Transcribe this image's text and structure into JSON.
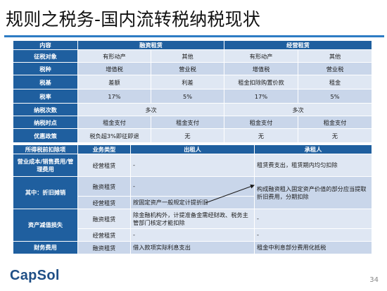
{
  "title": "规则之税务-国内流转税纳税现状",
  "top_table": {
    "header": [
      "内容",
      "融资租赁",
      "经营租赁"
    ],
    "rows": [
      {
        "label": "征税对象",
        "cells": [
          "有形动产",
          "其他",
          "有形动产",
          "其他"
        ]
      },
      {
        "label": "税种",
        "cells": [
          "增值税",
          "营业税",
          "增值税",
          "营业税"
        ]
      },
      {
        "label": "税基",
        "cells": [
          "差额",
          "利差",
          "租金扣除购置价款",
          "租金"
        ]
      },
      {
        "label": "税率",
        "cells": [
          "17%",
          "5%",
          "17%",
          "5%"
        ]
      },
      {
        "label": "纳税次数",
        "cells": [
          "多次",
          "多次"
        ]
      },
      {
        "label": "纳税时点",
        "cells": [
          "租金支付",
          "租金支付",
          "租金支付",
          "租金支付"
        ]
      },
      {
        "label": "优惠政策",
        "cells": [
          "税负超3%即征即退",
          "无",
          "无",
          "无"
        ]
      }
    ]
  },
  "bottom_table": {
    "header": [
      "所得税前扣除项",
      "业务类型",
      "出租人",
      "承租人"
    ],
    "rows": [
      {
        "label": "营业成本/销售费用/管理费用",
        "type": "经营租赁",
        "lessor": "-",
        "lessee": "租赁费支出，租赁期内均匀扣除"
      },
      {
        "label": "其中：折旧摊销",
        "type": "融资租赁",
        "lessor": "-",
        "lessee": "构成融资租入固定资产价值的部分应当提取折旧费用，分期扣除"
      },
      {
        "type": "经营租赁",
        "lessor": "按固定资产一般规定计提折旧",
        "lessee": ""
      },
      {
        "label": "资产减值损失",
        "type": "融资租赁",
        "lessor": "除金融机构外，计提准备金需经财政、税务主管部门核定才能扣除",
        "lessee": "-"
      },
      {
        "type": "经营租赁",
        "lessor": "-",
        "lessee": "-"
      },
      {
        "label": "财务费用",
        "type": "融资租赁",
        "lessor": "借入款项实际利息支出",
        "lessee": "租金中利息部分费用化抵税"
      }
    ]
  },
  "logo": "CapSol",
  "page_number": "34",
  "colors": {
    "header": "#1f5f9f",
    "row_light": "#dfe7f3",
    "row_dark": "#c9d6ea",
    "title_rule": "#2e7cc4",
    "logo": "#1f4f86"
  }
}
